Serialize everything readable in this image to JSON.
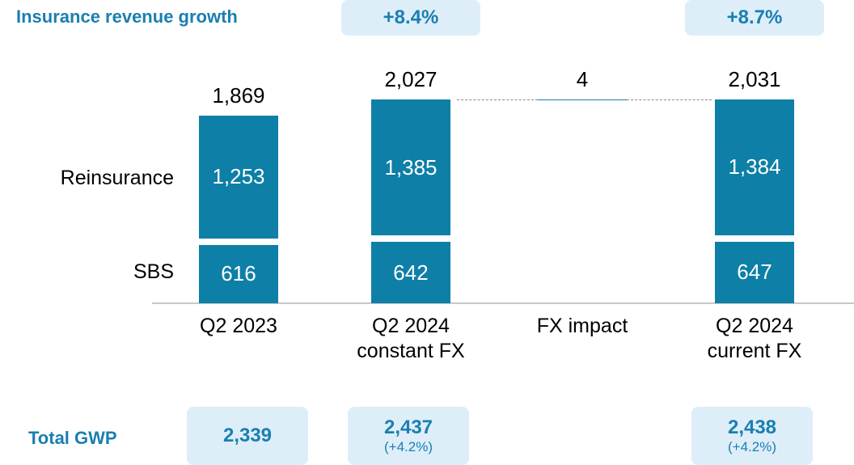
{
  "chart_data": {
    "type": "stacked_waterfall",
    "categories": [
      "Q2 2023",
      "Q2 2024\nconstant FX",
      "FX impact",
      "Q2 2024\ncurrent FX"
    ],
    "series": [
      {
        "name": "SBS",
        "color": "#0e7fa6",
        "values": [
          616,
          642,
          null,
          647
        ]
      },
      {
        "name": "Reinsurance",
        "color": "#0e7fa6",
        "values": [
          1253,
          1385,
          null,
          1384
        ],
        "value_labels": [
          "1,253",
          "1,385",
          null,
          "1,384"
        ]
      }
    ],
    "totals": {
      "values": [
        1869,
        2027,
        4,
        2031
      ],
      "value_labels": [
        "1,869",
        "2,027",
        "4",
        "2,031"
      ],
      "color": "#0e7fa6"
    },
    "growth": {
      "title": "Insurance revenue growth",
      "values": [
        null,
        8.4,
        null,
        8.7
      ],
      "value_labels": [
        null,
        "+8.4%",
        null,
        "+8.7%"
      ]
    },
    "gwp": {
      "title": "Total GWP",
      "values": [
        2339,
        2437,
        null,
        2438
      ],
      "value_labels": [
        "2,339",
        "2,437",
        null,
        "2,438"
      ],
      "change_labels": [
        null,
        "(+4.2%)",
        null,
        "(+4.2%)"
      ]
    }
  }
}
